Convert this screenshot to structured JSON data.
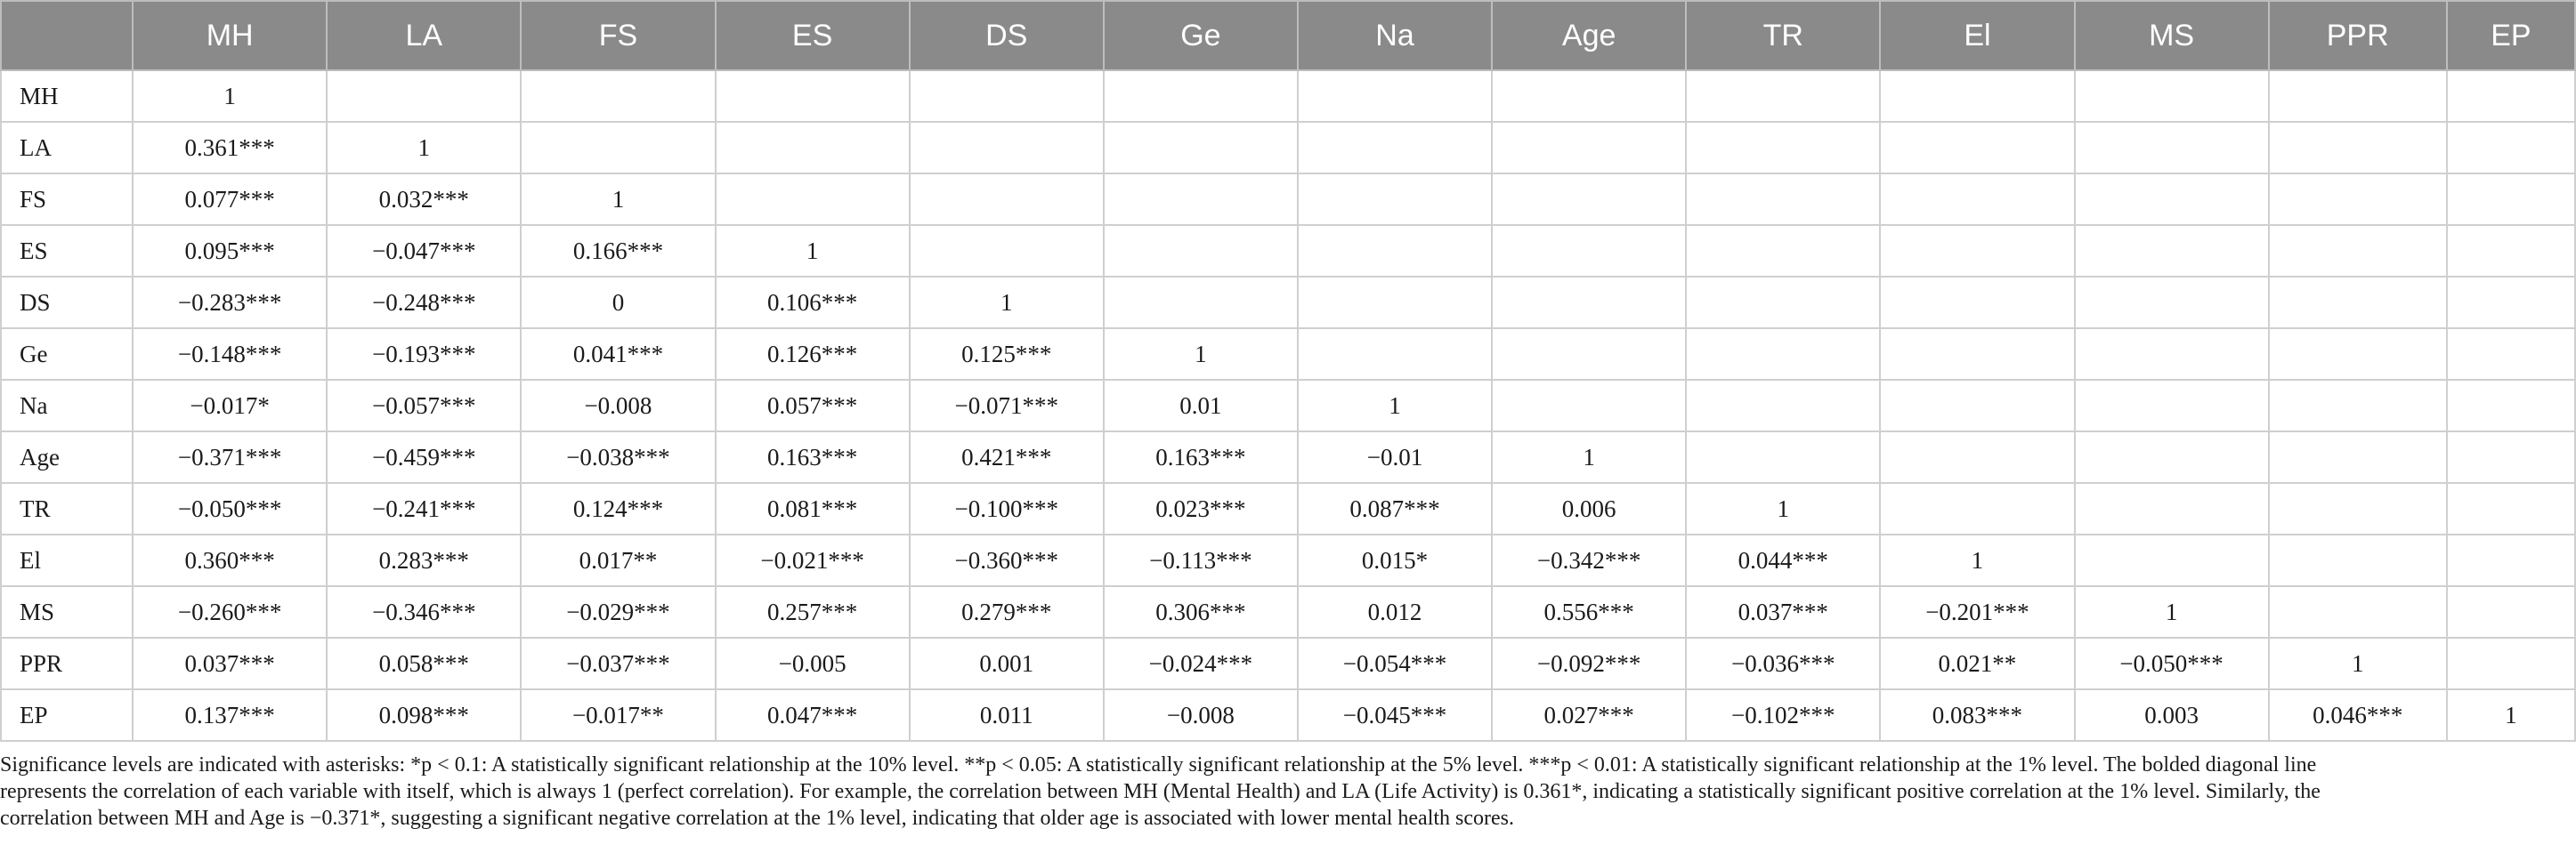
{
  "table": {
    "corner": "",
    "columns": [
      "MH",
      "LA",
      "FS",
      "ES",
      "DS",
      "Ge",
      "Na",
      "Age",
      "TR",
      "El",
      "MS",
      "PPR",
      "EP"
    ],
    "rows": [
      {
        "label": "MH",
        "cells": [
          "1",
          "",
          "",
          "",
          "",
          "",
          "",
          "",
          "",
          "",
          "",
          "",
          ""
        ]
      },
      {
        "label": "LA",
        "cells": [
          "0.361***",
          "1",
          "",
          "",
          "",
          "",
          "",
          "",
          "",
          "",
          "",
          "",
          ""
        ]
      },
      {
        "label": "FS",
        "cells": [
          "0.077***",
          "0.032***",
          "1",
          "",
          "",
          "",
          "",
          "",
          "",
          "",
          "",
          "",
          ""
        ]
      },
      {
        "label": "ES",
        "cells": [
          "0.095***",
          "−0.047***",
          "0.166***",
          "1",
          "",
          "",
          "",
          "",
          "",
          "",
          "",
          "",
          ""
        ]
      },
      {
        "label": "DS",
        "cells": [
          "−0.283***",
          "−0.248***",
          "0",
          "0.106***",
          "1",
          "",
          "",
          "",
          "",
          "",
          "",
          "",
          ""
        ]
      },
      {
        "label": "Ge",
        "cells": [
          "−0.148***",
          "−0.193***",
          "0.041***",
          "0.126***",
          "0.125***",
          "1",
          "",
          "",
          "",
          "",
          "",
          "",
          ""
        ]
      },
      {
        "label": "Na",
        "cells": [
          "−0.017*",
          "−0.057***",
          "−0.008",
          "0.057***",
          "−0.071***",
          "0.01",
          "1",
          "",
          "",
          "",
          "",
          "",
          ""
        ]
      },
      {
        "label": "Age",
        "cells": [
          "−0.371***",
          "−0.459***",
          "−0.038***",
          "0.163***",
          "0.421***",
          "0.163***",
          "−0.01",
          "1",
          "",
          "",
          "",
          "",
          ""
        ]
      },
      {
        "label": "TR",
        "cells": [
          "−0.050***",
          "−0.241***",
          "0.124***",
          "0.081***",
          "−0.100***",
          "0.023***",
          "0.087***",
          "0.006",
          "1",
          "",
          "",
          "",
          ""
        ]
      },
      {
        "label": "El",
        "cells": [
          "0.360***",
          "0.283***",
          "0.017**",
          "−0.021***",
          "−0.360***",
          "−0.113***",
          "0.015*",
          "−0.342***",
          "0.044***",
          "1",
          "",
          "",
          ""
        ]
      },
      {
        "label": "MS",
        "cells": [
          "−0.260***",
          "−0.346***",
          "−0.029***",
          "0.257***",
          "0.279***",
          "0.306***",
          "0.012",
          "0.556***",
          "0.037***",
          "−0.201***",
          "1",
          "",
          ""
        ]
      },
      {
        "label": "PPR",
        "cells": [
          "0.037***",
          "0.058***",
          "−0.037***",
          "−0.005",
          "0.001",
          "−0.024***",
          "−0.054***",
          "−0.092***",
          "−0.036***",
          "0.021**",
          "−0.050***",
          "1",
          ""
        ]
      },
      {
        "label": "EP",
        "cells": [
          "0.137***",
          "0.098***",
          "−0.017**",
          "0.047***",
          "0.011",
          "−0.008",
          "−0.045***",
          "0.027***",
          "−0.102***",
          "0.083***",
          "0.003",
          "0.046***",
          "1"
        ]
      }
    ]
  },
  "footnote": {
    "lines": [
      "Significance levels are indicated with asterisks: *p < 0.1: A statistically significant relationship at the 10% level. **p < 0.05: A statistically significant relationship at the 5% level. ***p < 0.01: A statistically significant relationship at the 1% level. The bolded diagonal line",
      "represents the correlation of each variable with itself, which is always 1 (perfect correlation). For example, the correlation between MH (Mental Health) and LA (Life Activity) is 0.361*, indicating a statistically significant positive correlation at the 1% level. Similarly, the",
      "correlation between MH and Age is −0.371*, suggesting a significant negative correlation at the 1% level, indicating that older age is associated with lower mental health scores."
    ]
  }
}
